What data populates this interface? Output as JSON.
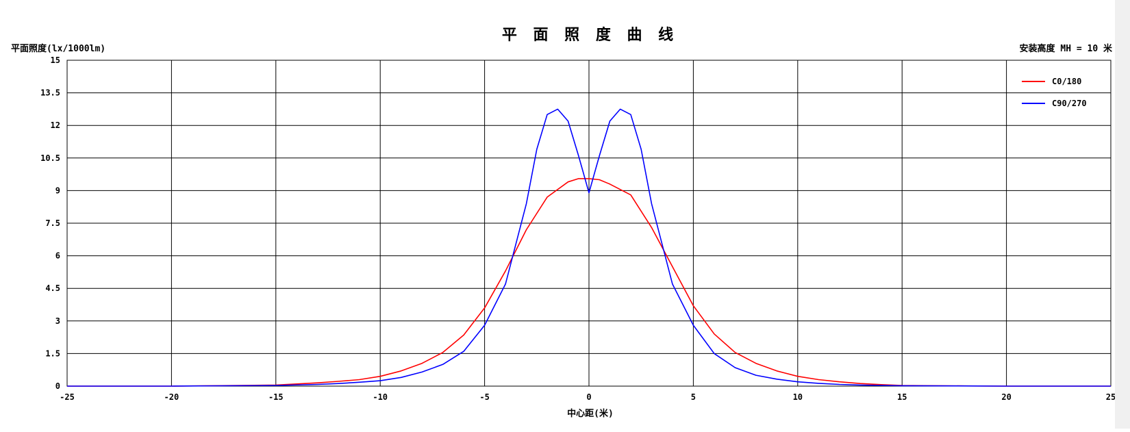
{
  "chart_data": {
    "type": "line",
    "title": "平 面 照 度 曲 线",
    "ylabel": "平面照度(lx/1000lm)",
    "xlabel": "中心距(米)",
    "annotation": "安装高度 MH = 10 米",
    "xlim": [
      -25,
      25
    ],
    "ylim": [
      0,
      15
    ],
    "x_ticks": [
      -25,
      -20,
      -15,
      -10,
      -5,
      0,
      5,
      10,
      15,
      20,
      25
    ],
    "y_ticks": [
      0,
      1.5,
      3,
      4.5,
      6,
      7.5,
      9,
      10.5,
      12,
      13.5,
      15
    ],
    "grid": true,
    "legend_position": "top-right",
    "series": [
      {
        "name": "C0/180",
        "color": "#ff0000",
        "x": [
          -25,
          -20,
          -18,
          -15,
          -14,
          -13,
          -12,
          -11,
          -10,
          -9,
          -8,
          -7,
          -6,
          -5,
          -4,
          -3,
          -2,
          -1,
          -0.5,
          0,
          0.5,
          1,
          2,
          3,
          4,
          5,
          6,
          7,
          8,
          9,
          10,
          11,
          12,
          13,
          14,
          15,
          18,
          20,
          25
        ],
        "y": [
          0,
          0,
          0.02,
          0.05,
          0.1,
          0.15,
          0.22,
          0.3,
          0.45,
          0.7,
          1.05,
          1.55,
          2.35,
          3.6,
          5.3,
          7.2,
          8.7,
          9.4,
          9.55,
          9.55,
          9.5,
          9.3,
          8.8,
          7.3,
          5.5,
          3.7,
          2.4,
          1.55,
          1.05,
          0.7,
          0.45,
          0.3,
          0.2,
          0.12,
          0.07,
          0.03,
          0.01,
          0,
          0
        ]
      },
      {
        "name": "C90/270",
        "color": "#0000ff",
        "x": [
          -25,
          -20,
          -15,
          -13,
          -12,
          -11,
          -10,
          -9,
          -8,
          -7,
          -6,
          -5,
          -4,
          -3,
          -2.5,
          -2,
          -1.5,
          -1,
          -0.5,
          0,
          0.5,
          1,
          1.5,
          2,
          2.5,
          3,
          4,
          5,
          6,
          7,
          8,
          9,
          10,
          11,
          12,
          13,
          15,
          20,
          25
        ],
        "y": [
          0,
          0,
          0.03,
          0.08,
          0.12,
          0.18,
          0.25,
          0.4,
          0.65,
          1.0,
          1.6,
          2.8,
          4.7,
          8.4,
          10.9,
          12.5,
          12.75,
          12.2,
          10.6,
          8.9,
          10.6,
          12.2,
          12.75,
          12.5,
          10.9,
          8.4,
          4.7,
          2.8,
          1.5,
          0.85,
          0.5,
          0.32,
          0.2,
          0.13,
          0.08,
          0.05,
          0.02,
          0,
          0
        ]
      }
    ]
  }
}
